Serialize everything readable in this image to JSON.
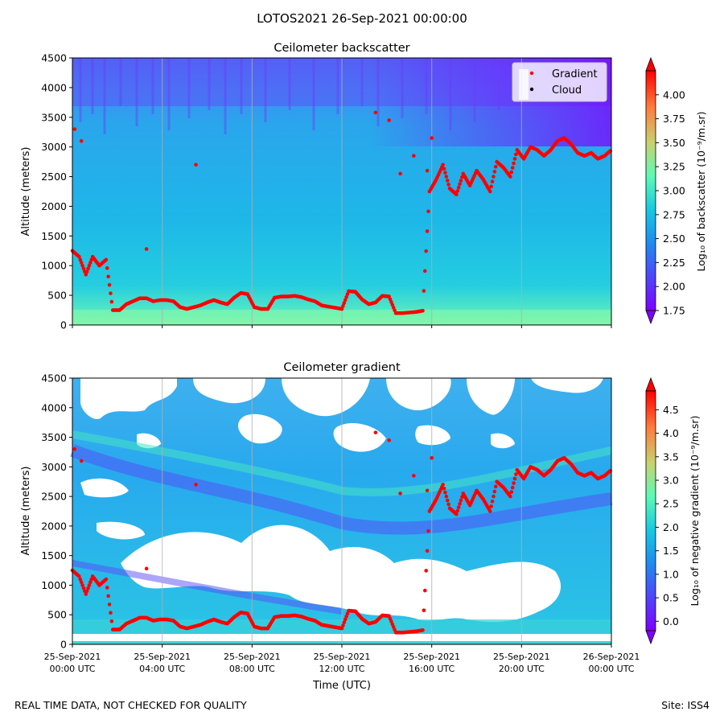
{
  "suptitle": "LOTOS2021 26-Sep-2021 00:00:00",
  "footer": {
    "left": "REAL TIME DATA, NOT CHECKED FOR QUALITY",
    "right": "Site: ISS4"
  },
  "colors": {
    "gradient_marker": "#ff0000",
    "cloud_marker": "#000000",
    "colormap": [
      "#7f00ff",
      "#3a67f9",
      "#17c9e2",
      "#5dfab6",
      "#a2e98a",
      "#e7b35a",
      "#ff5e2f",
      "#ff0000"
    ]
  },
  "chart_data": [
    {
      "type": "heatmap",
      "title": "Ceilometer backscatter",
      "ylabel": "Altitude (meters)",
      "xlabel": "",
      "ylim": [
        0,
        4500
      ],
      "yticks": [
        "0",
        "500",
        "1000",
        "1500",
        "2000",
        "2500",
        "3000",
        "3500",
        "4000",
        "4500"
      ],
      "xtick_labels": [],
      "grid": "vertical",
      "colorbar": {
        "label": "Log₁₀ of backscatter (10⁻⁹/m.sr)",
        "min": 1.75,
        "max": 4.25,
        "ticks": [
          "1.75",
          "2.00",
          "2.25",
          "2.50",
          "2.75",
          "3.00",
          "3.25",
          "3.50",
          "3.75",
          "4.00"
        ]
      },
      "legend": {
        "position": "top-right",
        "entries": [
          {
            "name": "Gradient",
            "color": "#ff0000"
          },
          {
            "name": "Cloud",
            "color": "#000000"
          }
        ]
      },
      "series": [
        {
          "name": "Gradient",
          "x_hours": [
            0.0,
            0.3,
            0.6,
            0.9,
            1.2,
            1.5,
            1.8,
            2.1,
            2.4,
            2.7,
            3.0,
            3.3,
            3.6,
            3.9,
            4.2,
            4.5,
            4.8,
            5.1,
            5.4,
            5.7,
            6.0,
            6.3,
            6.6,
            6.9,
            7.2,
            7.5,
            7.8,
            8.1,
            8.4,
            8.7,
            9.0,
            9.3,
            9.6,
            9.9,
            10.2,
            10.5,
            10.8,
            11.1,
            11.4,
            11.7,
            12.0,
            12.3,
            12.6,
            12.9,
            13.2,
            13.5,
            13.8,
            14.1,
            14.4,
            14.7,
            15.0,
            15.3,
            15.6,
            15.9,
            16.2,
            16.5,
            16.8,
            17.1,
            17.4,
            17.7,
            18.0,
            18.3,
            18.6,
            18.9,
            19.2,
            19.5,
            19.8,
            20.1,
            20.4,
            20.7,
            21.0,
            21.3,
            21.6,
            21.9,
            22.2,
            22.5,
            22.8,
            23.1,
            23.4,
            23.7,
            24.0
          ],
          "y_meters": [
            1250,
            1150,
            850,
            1150,
            1000,
            1100,
            250,
            250,
            350,
            400,
            450,
            450,
            400,
            420,
            420,
            400,
            300,
            270,
            300,
            330,
            380,
            420,
            380,
            350,
            460,
            540,
            520,
            300,
            270,
            270,
            460,
            480,
            480,
            490,
            470,
            430,
            400,
            330,
            310,
            290,
            270,
            570,
            560,
            430,
            350,
            380,
            490,
            480,
            200,
            200,
            210,
            220,
            240,
            2250,
            2450,
            2700,
            2300,
            2200,
            2550,
            2350,
            2600,
            2450,
            2250,
            2750,
            2650,
            2500,
            2950,
            2800,
            3000,
            2950,
            2850,
            2950,
            3100,
            3150,
            3050,
            2900,
            2850,
            2900,
            2800,
            2850,
            2950
          ]
        },
        {
          "name": "Gradient scattered",
          "x_hours": [
            0.1,
            0.4,
            5.5,
            13.5,
            14.1,
            14.6,
            15.2,
            15.8,
            16.0,
            3.3
          ],
          "y_meters": [
            3300,
            3100,
            2700,
            3580,
            3450,
            2550,
            2850,
            2600,
            3150,
            1280
          ]
        }
      ]
    },
    {
      "type": "heatmap",
      "title": "Ceilometer gradient",
      "ylabel": "Altitude (meters)",
      "xlabel": "Time (UTC)",
      "ylim": [
        0,
        4500
      ],
      "yticks": [
        "0",
        "500",
        "1000",
        "1500",
        "2000",
        "2500",
        "3000",
        "3500",
        "4000",
        "4500"
      ],
      "xtick_labels": [
        {
          "date": "25-Sep-2021",
          "time": "00:00 UTC"
        },
        {
          "date": "25-Sep-2021",
          "time": "04:00 UTC"
        },
        {
          "date": "25-Sep-2021",
          "time": "08:00 UTC"
        },
        {
          "date": "25-Sep-2021",
          "time": "12:00 UTC"
        },
        {
          "date": "25-Sep-2021",
          "time": "16:00 UTC"
        },
        {
          "date": "25-Sep-2021",
          "time": "20:00 UTC"
        },
        {
          "date": "26-Sep-2021",
          "time": "00:00 UTC"
        }
      ],
      "grid": "vertical",
      "colorbar": {
        "label": "Log₁₀ of negative gradient (10⁻⁹/m.sr)",
        "min": -0.2,
        "max": 4.9,
        "ticks": [
          "0.0",
          "0.5",
          "1.0",
          "1.5",
          "2.0",
          "2.5",
          "3.0",
          "3.5",
          "4.0",
          "4.5"
        ]
      },
      "series": [
        {
          "name": "Gradient",
          "same_as_top": true
        }
      ]
    }
  ]
}
